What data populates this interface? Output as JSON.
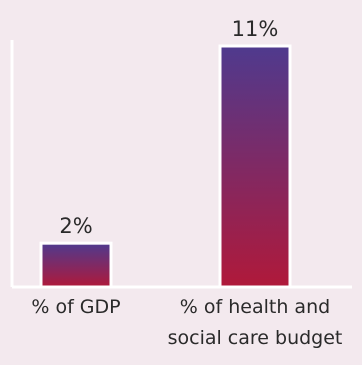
{
  "chart_data": {
    "type": "bar",
    "categories": [
      "% of GDP",
      "% of health and social care budget"
    ],
    "category_lines": [
      [
        "% of GDP"
      ],
      [
        "% of health and",
        "social care budget"
      ]
    ],
    "values": [
      2,
      11
    ],
    "value_labels": [
      "2%",
      "11%"
    ],
    "ylim": [
      0,
      11
    ],
    "title": "",
    "xlabel": "",
    "ylabel": "",
    "grid": false,
    "colors": {
      "bar_top": "#4f3a8e",
      "bar_bottom": "#b0193a",
      "bar_outline": "#ffffff",
      "axis": "#ffffff",
      "background": "#f3e9ee"
    }
  }
}
